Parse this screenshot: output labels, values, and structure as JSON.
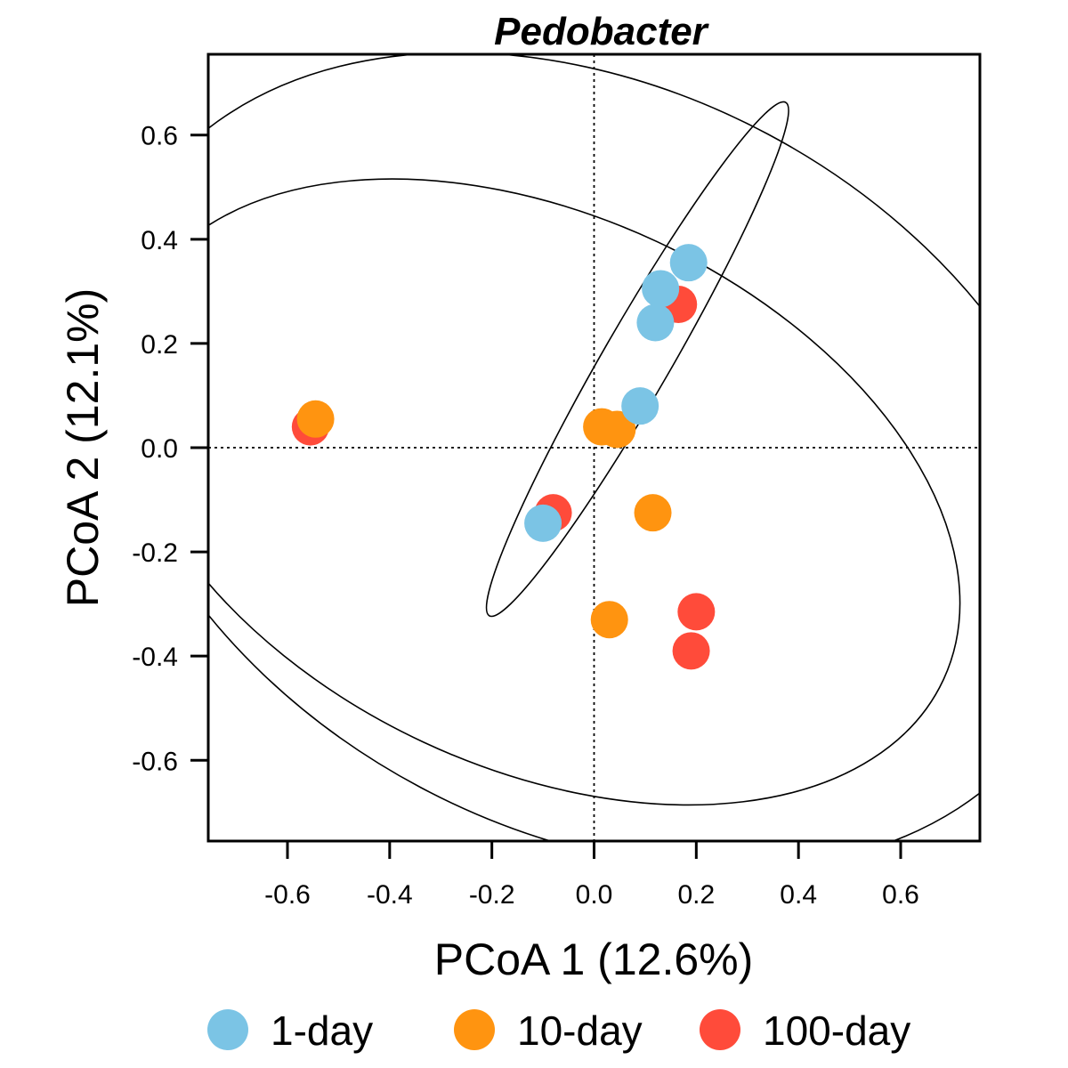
{
  "chart_data": {
    "type": "scatter",
    "title": "Pedobacter",
    "xlabel": "PCoA 1 (12.6%)",
    "ylabel": "PCoA 2 (12.1%)",
    "xlim": [
      -0.755,
      0.755
    ],
    "ylim": [
      -0.755,
      0.755
    ],
    "x_ticks": [
      -0.6,
      -0.4,
      -0.2,
      0.0,
      0.2,
      0.4,
      0.6
    ],
    "x_tick_labels": [
      "-0.6",
      "-0.4",
      "-0.2",
      "0.0",
      "0.2",
      "0.4",
      "0.6"
    ],
    "y_ticks": [
      -0.6,
      -0.4,
      -0.2,
      0.0,
      0.2,
      0.4,
      0.6
    ],
    "y_tick_labels": [
      "-0.6",
      "-0.4",
      "-0.2",
      "0.0",
      "0.2",
      "0.4",
      "0.6"
    ],
    "reference_lines": {
      "x": 0,
      "y": 0,
      "style": "dotted"
    },
    "grid": false,
    "legend_position": "bottom",
    "series": [
      {
        "name": "1-day",
        "color": "#7BC4E5",
        "points": [
          [
            0.185,
            0.355
          ],
          [
            0.13,
            0.305
          ],
          [
            0.12,
            0.24
          ],
          [
            0.09,
            0.08
          ],
          [
            -0.1,
            -0.145
          ]
        ]
      },
      {
        "name": "10-day",
        "color": "#FF9410",
        "points": [
          [
            -0.545,
            0.055
          ],
          [
            0.015,
            0.04
          ],
          [
            0.045,
            0.035
          ],
          [
            0.115,
            -0.125
          ],
          [
            0.03,
            -0.33
          ]
        ]
      },
      {
        "name": "100-day",
        "color": "#FF4B3A",
        "points": [
          [
            -0.555,
            0.04
          ],
          [
            0.165,
            0.275
          ],
          [
            -0.08,
            -0.125
          ],
          [
            0.2,
            -0.315
          ],
          [
            0.19,
            -0.39
          ]
        ]
      }
    ],
    "ellipses": [
      {
        "center": [
          -0.105,
          -0.085
        ],
        "semi_axes": [
          0.87,
          0.53
        ],
        "rotation_deg": -25
      },
      {
        "center": [
          0.0,
          -0.025
        ],
        "semi_axes": [
          1.02,
          0.71
        ],
        "rotation_deg": -28
      },
      {
        "center": [
          0.085,
          0.17
        ],
        "semi_axes": [
          0.58,
          0.065
        ],
        "rotation_deg": 60
      }
    ]
  }
}
